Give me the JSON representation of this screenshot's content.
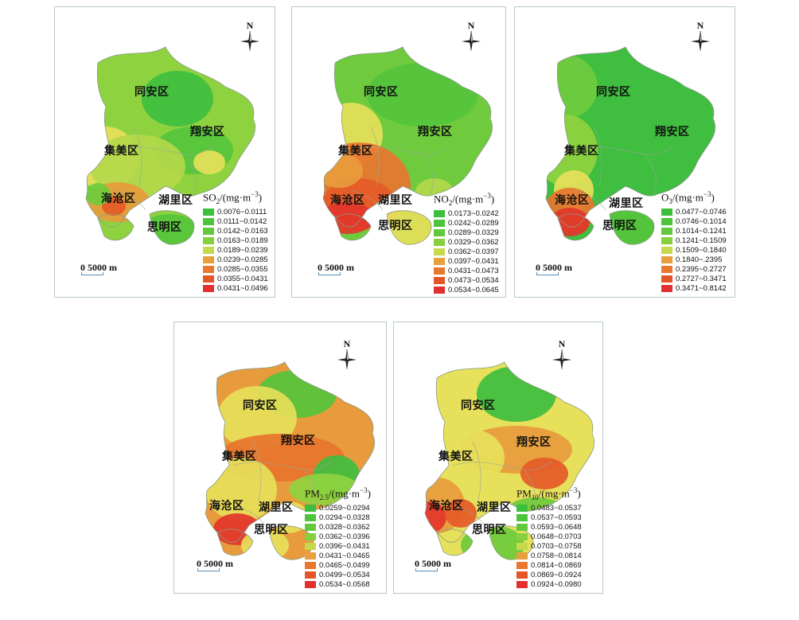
{
  "colors": {
    "greens": [
      "#3fbe3f",
      "#55c43c",
      "#6fcb3d",
      "#8fd23f",
      "#b3d84a"
    ],
    "oranges": [
      "#e89b3c",
      "#e8752f",
      "#e55a28",
      "#e2362a"
    ],
    "yellow": "#e6e05a",
    "background": "#ffffff",
    "panel_border": "#b9c8cc"
  },
  "common": {
    "north_label": "N",
    "scale_label": "0 5000 m"
  },
  "legend_colors": [
    "#3cbf3c",
    "#4dc43c",
    "#62c93c",
    "#86d03f",
    "#c6d94c",
    "#e89f3c",
    "#e8782f",
    "#e5552a",
    "#e23030"
  ],
  "panels": [
    {
      "id": "so2",
      "legend_title": {
        "pre": "SO",
        "sub": "2",
        "mid": "/(mg·m",
        "sup": "−3",
        "post": ")"
      },
      "ranges": [
        "0.0076~0.0111",
        "0.0111~0.0142",
        "0.0142~0.0163",
        "0.0163~0.0189",
        "0.0189~0.0239",
        "0.0239~0.0285",
        "0.0285~0.0355",
        "0.0355~0.0431",
        "0.0431~0.0496"
      ],
      "districts": {
        "tongan": "同安区",
        "xiangan": "翔安区",
        "jimei": "集美区",
        "haicang": "海沧区",
        "huli": "湖里区",
        "siming": "思明区"
      }
    },
    {
      "id": "no2",
      "legend_title": {
        "pre": "NO",
        "sub": "2",
        "mid": "/(mg·m",
        "sup": "−3",
        "post": ")"
      },
      "ranges": [
        "0.0173~0.0242",
        "0.0242~0.0289",
        "0.0289~0.0329",
        "0.0329~0.0362",
        "0.0362~0.0397",
        "0.0397~0.0431",
        "0.0431~0.0473",
        "0.0473~0.0534",
        "0.0534~0.0645"
      ],
      "districts": {
        "tongan": "同安区",
        "xiangan": "翔安区",
        "jimei": "集美区",
        "haicang": "海沧区",
        "huli": "湖里区",
        "siming": "思明区"
      }
    },
    {
      "id": "o3",
      "legend_title": {
        "pre": "O",
        "sub": "3",
        "mid": "/(mg·m",
        "sup": "−3",
        "post": ")"
      },
      "ranges": [
        "0.0477~0.0746",
        "0.0746~0.1014",
        "0.1014~0.1241",
        "0.1241~0.1509",
        "0.1509~0.1840",
        "0.1840~.2395",
        "0.2395~0.2727",
        "0.2727~0.3471",
        "0.3471~0.8142"
      ],
      "districts": {
        "tongan": "同安区",
        "xiangan": "翔安区",
        "jimei": "集美区",
        "haicang": "海沧区",
        "huli": "湖里区",
        "siming": "思明区"
      }
    },
    {
      "id": "pm25",
      "legend_title": {
        "pre": "PM",
        "sub": "2.5",
        "mid": "/(mg·m",
        "sup": "−3",
        "post": ")"
      },
      "ranges": [
        "0.0259~0.0294",
        "0.0294~0.0328",
        "0.0328~0.0362",
        "0.0362~0.0396",
        "0.0396~0.0431",
        "0.0431~0.0465",
        "0.0465~0.0499",
        "0.0499~0.0534",
        "0.0534~0.0568"
      ],
      "districts": {
        "tongan": "同安区",
        "xiangan": "翔安区",
        "jimei": "集美区",
        "haicang": "海沧区",
        "huli": "湖里区",
        "siming": "思明区"
      }
    },
    {
      "id": "pm10",
      "legend_title": {
        "pre": "PM",
        "sub": "10",
        "mid": "/(mg·m",
        "sup": "−3",
        "post": ")"
      },
      "ranges": [
        "0.0483~0.0537",
        "0.0537~0.0593",
        "0.0593~0.0648",
        "0.0648~0.0703",
        "0.0703~0.0758",
        "0.0758~0.0814",
        "0.0814~0.0869",
        "0.0869~0.0924",
        "0.0924~0.0980"
      ],
      "districts": {
        "tongan": "同安区",
        "xiangan": "翔安区",
        "jimei": "集美区",
        "haicang": "海沧区",
        "huli": "湖里区",
        "siming": "思明区"
      }
    }
  ]
}
